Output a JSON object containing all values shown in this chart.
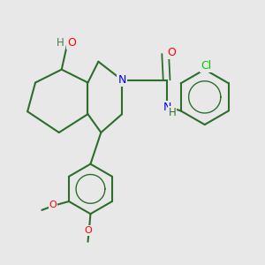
{
  "background_color": "#e8e8e8",
  "bond_color": "#2d6e2d",
  "atom_colors": {
    "N": "#0000ff",
    "O": "#ff0000",
    "Cl": "#00cc00",
    "H_gray": "#4a7a4a",
    "C": "#2d6e2d"
  },
  "font_size": 9,
  "figsize": [
    3.0,
    3.0
  ],
  "dpi": 100,
  "xlim": [
    0,
    1
  ],
  "ylim": [
    0,
    1
  ]
}
